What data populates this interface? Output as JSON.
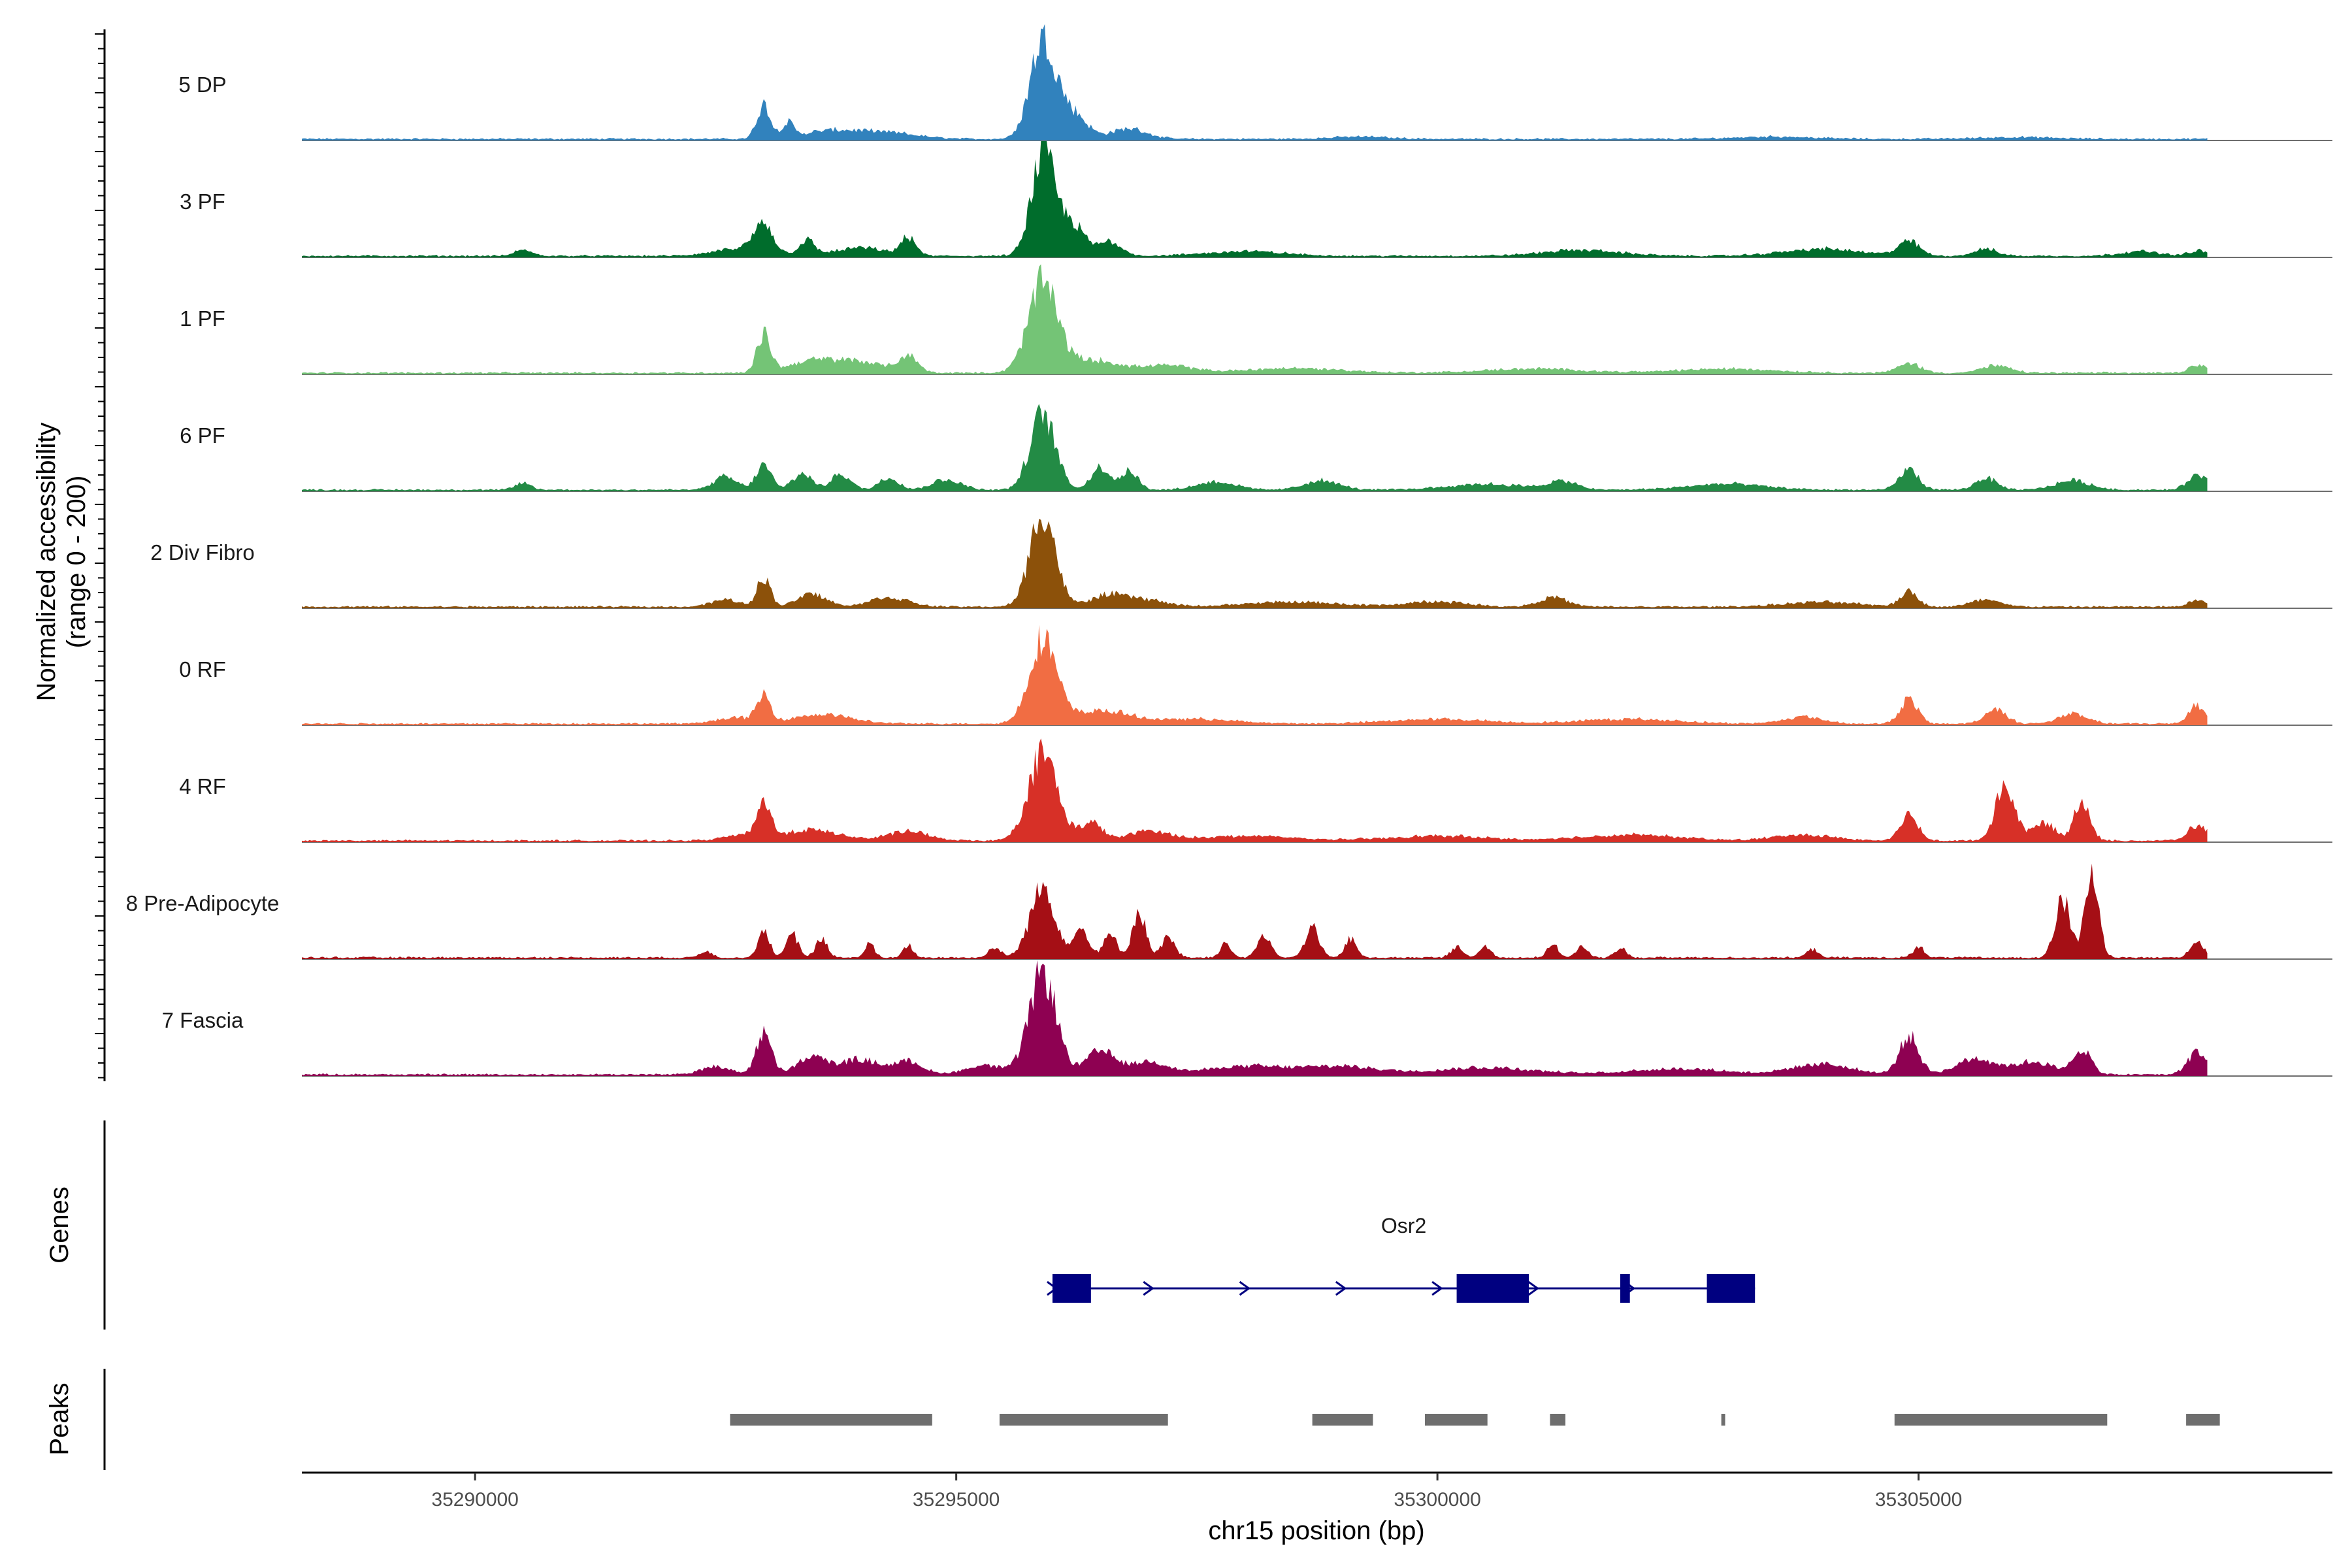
{
  "chart_data": {
    "type": "area",
    "title": "",
    "ylabel": "Normalized accessibility\n(range 0 - 200)",
    "ylabel_lines": [
      "Normalized accessibility",
      "(range 0 - 200)"
    ],
    "xlabel": "chr15 position (bp)",
    "xlim": [
      35288200,
      35309300
    ],
    "track_x_range": [
      35288200,
      35308000
    ],
    "ylim": [
      0,
      200
    ],
    "x_ticks": [
      35290000,
      35295000,
      35300000,
      35305000
    ],
    "x_tick_labels": [
      "35290000",
      "35295000",
      "35300000",
      "35305000"
    ],
    "grid": false,
    "series": [
      {
        "name": "5 DP",
        "color": "#3182BD",
        "peaks": [
          [
            35293000,
            58,
            70
          ],
          [
            35293250,
            25,
            60
          ],
          [
            35293700,
            14,
            300
          ],
          [
            35294300,
            10,
            300
          ],
          [
            35295900,
            170,
            130
          ],
          [
            35296200,
            45,
            150
          ],
          [
            35296800,
            18,
            180
          ],
          [
            35299200,
            4,
            300
          ],
          [
            35303500,
            4,
            400
          ],
          [
            35306000,
            3,
            400
          ]
        ]
      },
      {
        "name": "3 PF",
        "color": "#006D2C",
        "peaks": [
          [
            35290500,
            10,
            90
          ],
          [
            35292800,
            14,
            280
          ],
          [
            35293000,
            48,
            90
          ],
          [
            35293450,
            25,
            80
          ],
          [
            35294000,
            14,
            250
          ],
          [
            35294500,
            30,
            80
          ],
          [
            35295900,
            175,
            120
          ],
          [
            35296200,
            55,
            130
          ],
          [
            35296600,
            25,
            120
          ],
          [
            35298000,
            8,
            400
          ],
          [
            35301500,
            10,
            400
          ],
          [
            35304000,
            12,
            400
          ],
          [
            35304900,
            24,
            110
          ],
          [
            35305700,
            12,
            120
          ],
          [
            35307300,
            8,
            200
          ],
          [
            35307900,
            9,
            90
          ]
        ]
      },
      {
        "name": "1 PF",
        "color": "#74C476",
        "peaks": [
          [
            35293000,
            65,
            70
          ],
          [
            35293500,
            20,
            250
          ],
          [
            35294000,
            18,
            250
          ],
          [
            35294500,
            28,
            100
          ],
          [
            35295900,
            150,
            150
          ],
          [
            35296400,
            22,
            300
          ],
          [
            35297200,
            12,
            250
          ],
          [
            35298500,
            8,
            500
          ],
          [
            35301000,
            7,
            500
          ],
          [
            35303000,
            7,
            500
          ],
          [
            35304900,
            16,
            120
          ],
          [
            35305800,
            12,
            150
          ],
          [
            35307900,
            14,
            90
          ]
        ]
      },
      {
        "name": "6 PF",
        "color": "#238B45",
        "peaks": [
          [
            35290500,
            12,
            80
          ],
          [
            35292600,
            22,
            120
          ],
          [
            35293000,
            42,
            80
          ],
          [
            35293400,
            28,
            100
          ],
          [
            35293800,
            28,
            100
          ],
          [
            35294300,
            22,
            100
          ],
          [
            35294900,
            18,
            150
          ],
          [
            35295900,
            130,
            130
          ],
          [
            35296500,
            38,
            100
          ],
          [
            35296800,
            32,
            90
          ],
          [
            35297700,
            14,
            200
          ],
          [
            35298800,
            16,
            180
          ],
          [
            35300500,
            10,
            400
          ],
          [
            35301300,
            14,
            150
          ],
          [
            35303000,
            10,
            400
          ],
          [
            35304900,
            35,
            100
          ],
          [
            35305700,
            20,
            110
          ],
          [
            35306600,
            16,
            180
          ],
          [
            35307900,
            26,
            100
          ]
        ]
      },
      {
        "name": "2 Div Fibro",
        "color": "#8C510A",
        "peaks": [
          [
            35292600,
            12,
            150
          ],
          [
            35293000,
            50,
            70
          ],
          [
            35293500,
            22,
            150
          ],
          [
            35294300,
            16,
            200
          ],
          [
            35295900,
            165,
            130
          ],
          [
            35296600,
            20,
            200
          ],
          [
            35297000,
            10,
            200
          ],
          [
            35298500,
            8,
            500
          ],
          [
            35300000,
            9,
            300
          ],
          [
            35301200,
            16,
            150
          ],
          [
            35304000,
            8,
            400
          ],
          [
            35304900,
            26,
            90
          ],
          [
            35305700,
            12,
            150
          ],
          [
            35307900,
            12,
            90
          ]
        ]
      },
      {
        "name": "0 RF",
        "color": "#F16D43",
        "peaks": [
          [
            35292700,
            10,
            200
          ],
          [
            35293000,
            44,
            70
          ],
          [
            35293600,
            16,
            300
          ],
          [
            35295900,
            145,
            140
          ],
          [
            35296500,
            22,
            300
          ],
          [
            35297500,
            8,
            400
          ],
          [
            35300000,
            8,
            500
          ],
          [
            35302000,
            8,
            500
          ],
          [
            35303800,
            12,
            200
          ],
          [
            35304900,
            42,
            90
          ],
          [
            35305800,
            26,
            110
          ],
          [
            35306600,
            16,
            150
          ],
          [
            35307900,
            32,
            90
          ]
        ]
      },
      {
        "name": "4 RF",
        "color": "#D73027",
        "peaks": [
          [
            35292800,
            10,
            200
          ],
          [
            35293000,
            58,
            70
          ],
          [
            35293500,
            18,
            300
          ],
          [
            35294500,
            16,
            200
          ],
          [
            35295900,
            150,
            150
          ],
          [
            35296400,
            30,
            120
          ],
          [
            35297000,
            16,
            200
          ],
          [
            35298000,
            8,
            500
          ],
          [
            35300000,
            8,
            500
          ],
          [
            35302000,
            10,
            500
          ],
          [
            35303800,
            10,
            300
          ],
          [
            35304900,
            45,
            90
          ],
          [
            35305900,
            95,
            100
          ],
          [
            35306300,
            30,
            120
          ],
          [
            35306700,
            72,
            80
          ],
          [
            35307900,
            26,
            100
          ]
        ]
      },
      {
        "name": "8 Pre-Adipocyte",
        "color": "#A50F15",
        "peaks": [
          [
            35292400,
            12,
            60
          ],
          [
            35293000,
            48,
            60
          ],
          [
            35293300,
            40,
            60
          ],
          [
            35293600,
            32,
            60
          ],
          [
            35294100,
            24,
            50
          ],
          [
            35294500,
            22,
            50
          ],
          [
            35295400,
            18,
            60
          ],
          [
            35295900,
            120,
            130
          ],
          [
            35296300,
            48,
            80
          ],
          [
            35296600,
            38,
            70
          ],
          [
            35296900,
            78,
            70
          ],
          [
            35297200,
            34,
            70
          ],
          [
            35297800,
            22,
            60
          ],
          [
            35298200,
            40,
            70
          ],
          [
            35298700,
            52,
            70
          ],
          [
            35299100,
            32,
            60
          ],
          [
            35300200,
            18,
            60
          ],
          [
            35300500,
            20,
            60
          ],
          [
            35301200,
            20,
            60
          ],
          [
            35301500,
            18,
            60
          ],
          [
            35301900,
            16,
            60
          ],
          [
            35303900,
            14,
            60
          ],
          [
            35305000,
            18,
            60
          ],
          [
            35306500,
            98,
            80
          ],
          [
            35306800,
            148,
            70
          ],
          [
            35307900,
            28,
            70
          ]
        ]
      },
      {
        "name": "7 Fascia",
        "color": "#8E0152",
        "peaks": [
          [
            35292500,
            14,
            150
          ],
          [
            35293000,
            70,
            80
          ],
          [
            35293500,
            30,
            150
          ],
          [
            35294000,
            26,
            200
          ],
          [
            35294500,
            22,
            150
          ],
          [
            35295300,
            16,
            200
          ],
          [
            35295900,
            175,
            140
          ],
          [
            35296500,
            40,
            150
          ],
          [
            35297000,
            22,
            200
          ],
          [
            35298000,
            14,
            400
          ],
          [
            35299000,
            14,
            400
          ],
          [
            35300500,
            12,
            500
          ],
          [
            35302500,
            10,
            500
          ],
          [
            35304000,
            18,
            300
          ],
          [
            35304900,
            65,
            100
          ],
          [
            35305600,
            28,
            200
          ],
          [
            35306200,
            22,
            200
          ],
          [
            35306700,
            44,
            90
          ],
          [
            35307900,
            40,
            100
          ]
        ]
      }
    ],
    "genes_panel": {
      "title": "Genes",
      "genes": [
        {
          "name": "Osr2",
          "strand": "+",
          "start": 35296000,
          "end": 35303300,
          "exons": [
            [
              35296000,
              35296400
            ],
            [
              35300200,
              35300950
            ],
            [
              35301900,
              35302000
            ],
            [
              35302800,
              35303300
            ]
          ]
        }
      ]
    },
    "peaks_panel": {
      "title": "Peaks",
      "regions": [
        [
          35292650,
          35294750
        ],
        [
          35295450,
          35297200
        ],
        [
          35298700,
          35299330
        ],
        [
          35299870,
          35300520
        ],
        [
          35301170,
          35301330
        ],
        [
          35302950,
          35302990
        ],
        [
          35304750,
          35306960
        ],
        [
          35307780,
          35308130
        ]
      ]
    }
  }
}
